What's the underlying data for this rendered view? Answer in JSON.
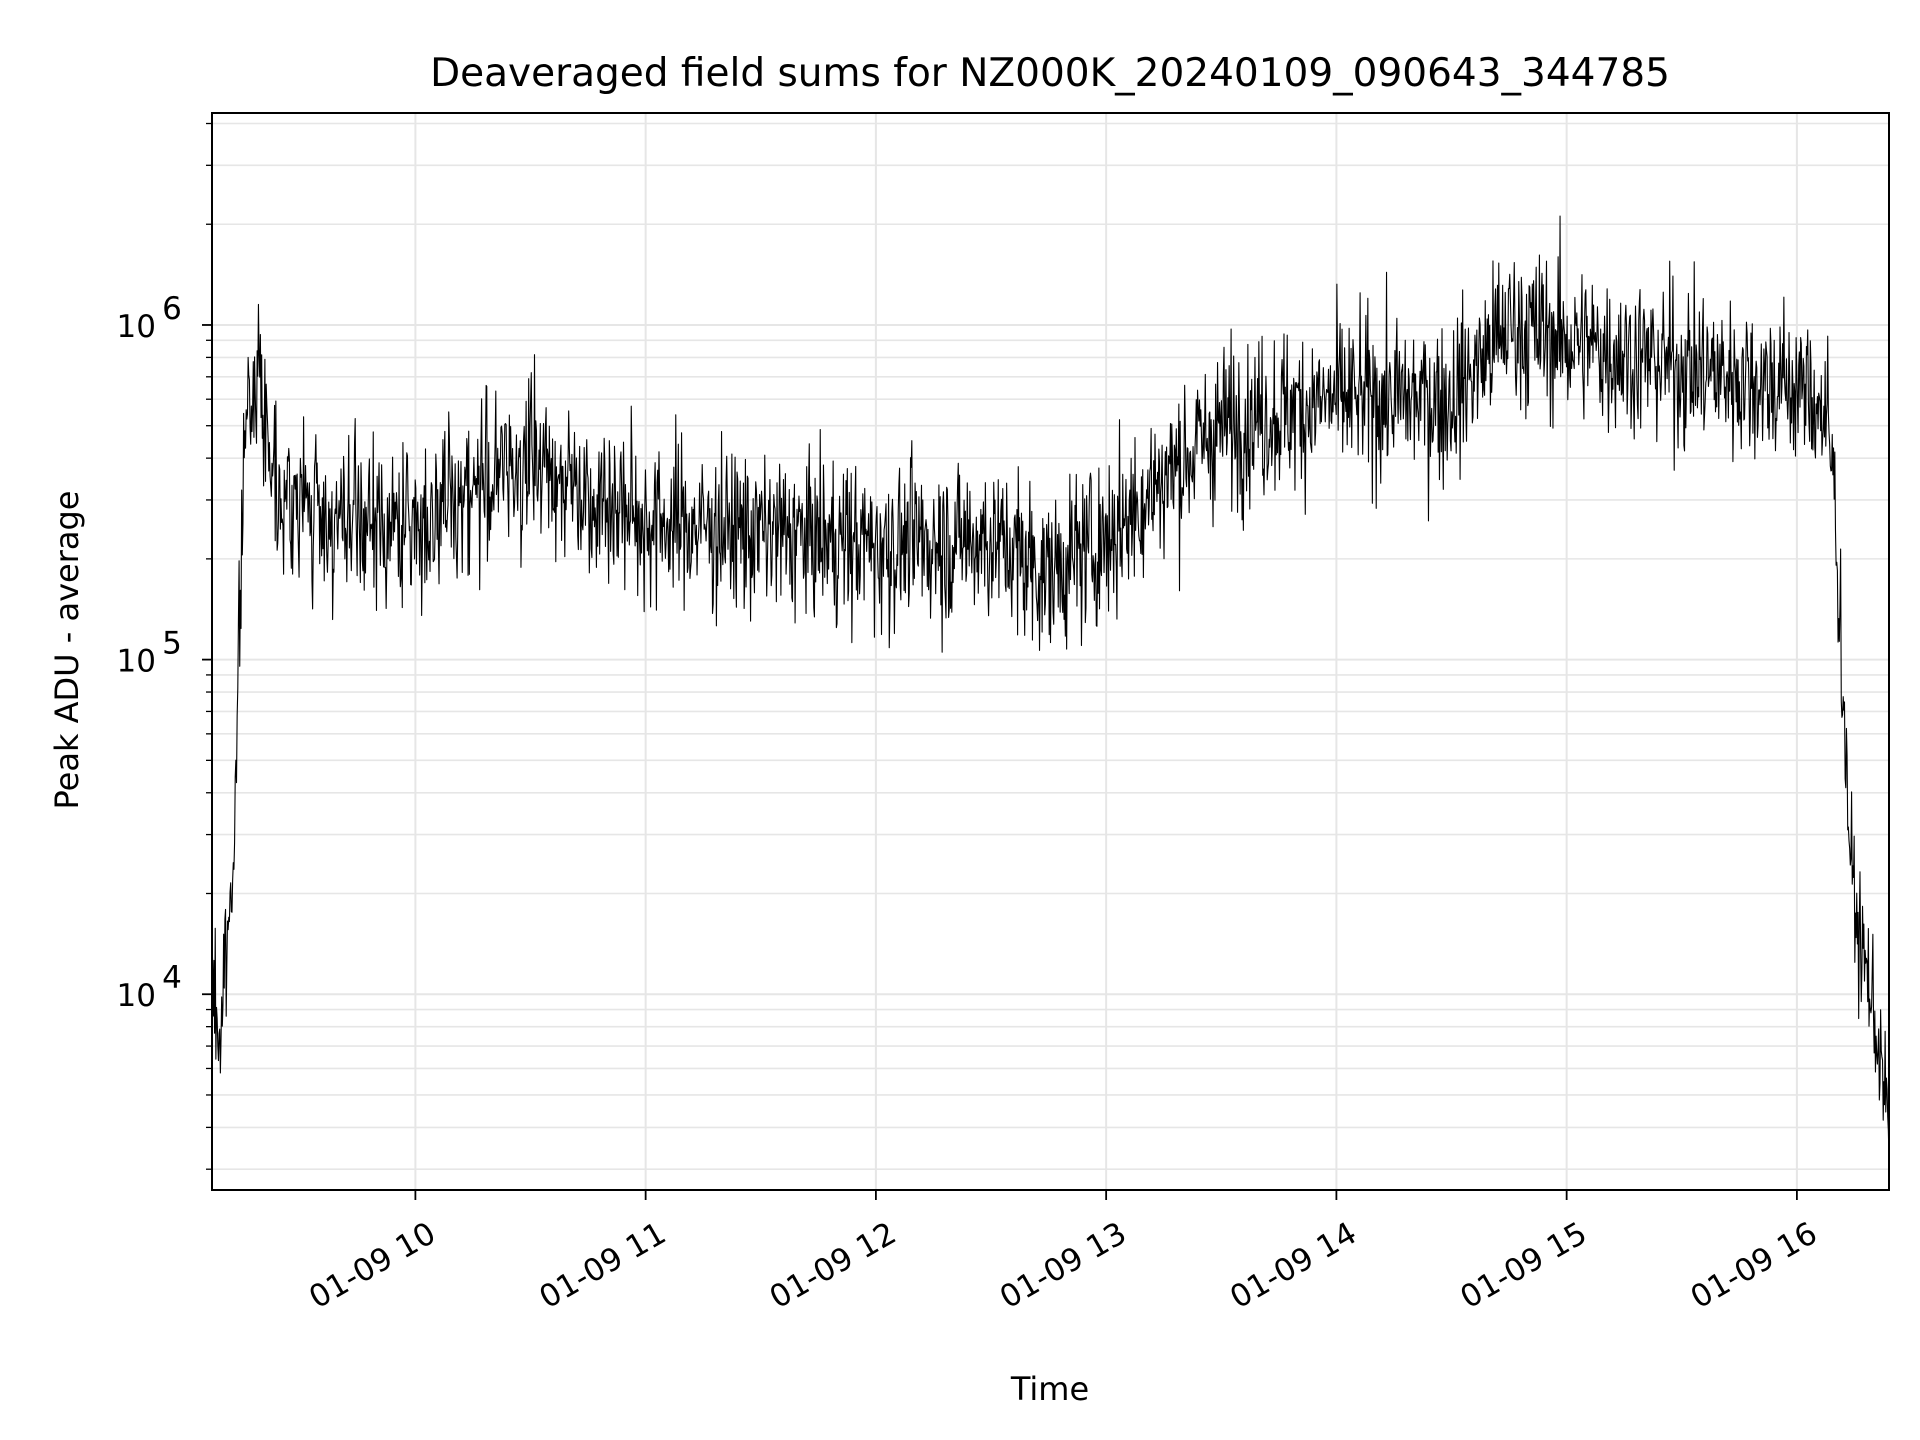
{
  "chart_data": {
    "type": "line",
    "title": "Deaveraged field sums for NZ000K_20240109_090643_344785",
    "xlabel": "Time",
    "ylabel": "Peak ADU - average",
    "yscale": "log",
    "xlim": [
      "2024-01-09 09:07",
      "2024-01-09 16:24"
    ],
    "ylim": [
      2600,
      4300000
    ],
    "grid": true,
    "line_color": "#000000",
    "x_ticks": [
      {
        "t": "2024-01-09 10:00",
        "label": "01-09 10"
      },
      {
        "t": "2024-01-09 11:00",
        "label": "01-09 11"
      },
      {
        "t": "2024-01-09 12:00",
        "label": "01-09 12"
      },
      {
        "t": "2024-01-09 13:00",
        "label": "01-09 13"
      },
      {
        "t": "2024-01-09 14:00",
        "label": "01-09 14"
      },
      {
        "t": "2024-01-09 15:00",
        "label": "01-09 15"
      },
      {
        "t": "2024-01-09 16:00",
        "label": "01-09 16"
      }
    ],
    "y_ticks": [
      {
        "value": 10000,
        "base": "10",
        "exp": "4"
      },
      {
        "value": 100000,
        "base": "10",
        "exp": "5"
      },
      {
        "value": 1000000,
        "base": "10",
        "exp": "6"
      }
    ],
    "series": [
      {
        "x": [
          "2024-01-09 09:07",
          "2024-01-09 09:08",
          "2024-01-09 09:09",
          "2024-01-09 09:10",
          "2024-01-09 09:11",
          "2024-01-09 09:12",
          "2024-01-09 09:13",
          "2024-01-09 09:14",
          "2024-01-09 09:15",
          "2024-01-09 09:16",
          "2024-01-09 09:17",
          "2024-01-09 09:18",
          "2024-01-09 09:19",
          "2024-01-09 09:20",
          "2024-01-09 09:22",
          "2024-01-09 09:24",
          "2024-01-09 09:26",
          "2024-01-09 09:28",
          "2024-01-09 09:30",
          "2024-01-09 09:40",
          "2024-01-09 10:00",
          "2024-01-09 10:15",
          "2024-01-09 10:30",
          "2024-01-09 10:45",
          "2024-01-09 11:00",
          "2024-01-09 11:30",
          "2024-01-09 12:00",
          "2024-01-09 12:30",
          "2024-01-09 12:45",
          "2024-01-09 13:00",
          "2024-01-09 13:15",
          "2024-01-09 13:30",
          "2024-01-09 14:00",
          "2024-01-09 14:30",
          "2024-01-09 14:45",
          "2024-01-09 15:00",
          "2024-01-09 15:30",
          "2024-01-09 16:00",
          "2024-01-09 16:05",
          "2024-01-09 16:08",
          "2024-01-09 16:10",
          "2024-01-09 16:12",
          "2024-01-09 16:14",
          "2024-01-09 16:16",
          "2024-01-09 16:18",
          "2024-01-09 16:20",
          "2024-01-09 16:22",
          "2024-01-09 16:24"
        ],
        "y": [
          12000,
          9000,
          7000,
          11000,
          14000,
          20000,
          40000,
          100000,
          300000,
          600000,
          500000,
          700000,
          800000,
          600000,
          450000,
          350000,
          300000,
          280000,
          300000,
          250000,
          250000,
          330000,
          400000,
          320000,
          260000,
          240000,
          220000,
          230000,
          180000,
          230000,
          350000,
          500000,
          600000,
          600000,
          1000000,
          900000,
          750000,
          650000,
          600000,
          500000,
          300000,
          80000,
          25000,
          15000,
          12000,
          9000,
          6000,
          4000
        ]
      }
    ]
  }
}
